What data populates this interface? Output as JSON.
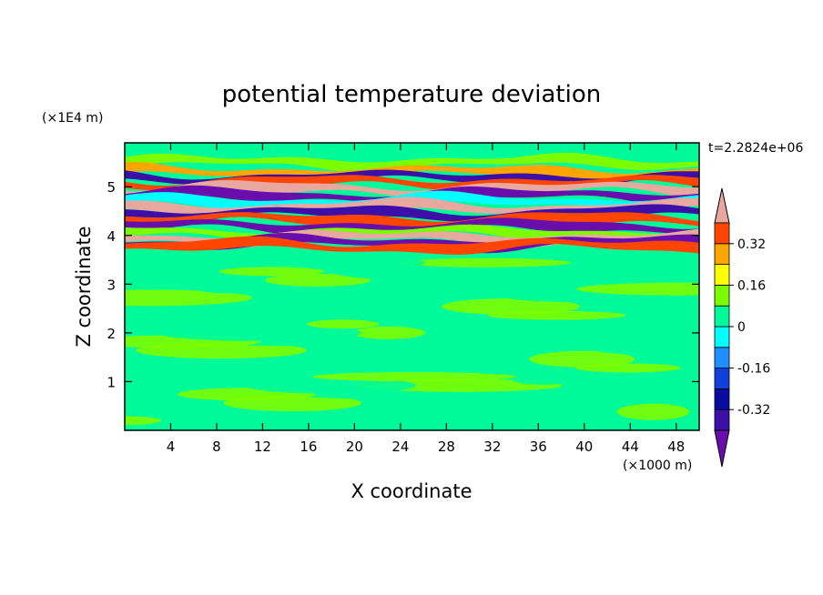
{
  "chart_data": {
    "type": "heatmap",
    "title": "potential temperature deviation",
    "xlabel": "X coordinate",
    "ylabel": "Z coordinate",
    "x_unit": "(×1000 m)",
    "y_unit": "(×1E4 m)",
    "time_label": "t=2.2824e+06",
    "xlim": [
      0,
      50
    ],
    "ylim": [
      0,
      5.9
    ],
    "x_ticks": [
      4,
      8,
      12,
      16,
      20,
      24,
      28,
      32,
      36,
      40,
      44,
      48
    ],
    "y_ticks": [
      1,
      2,
      3,
      4,
      5
    ],
    "colorbar": {
      "levels": [
        -0.48,
        -0.4,
        -0.32,
        -0.24,
        -0.16,
        -0.08,
        0,
        0.08,
        0.16,
        0.24,
        0.32,
        0.4,
        0.48
      ],
      "colors": [
        "#6a0dad",
        "#3b0fa8",
        "#0a0aa0",
        "#1040d8",
        "#1e90ff",
        "#00ffff",
        "#00fa9a",
        "#7cfc00",
        "#ffff00",
        "#ffa500",
        "#ff4500",
        "#ff2a2a",
        "#e8a8a0"
      ],
      "tick_labels": [
        "0.32",
        "0.16",
        "0",
        "-0.16",
        "-0.32"
      ],
      "tick_values": [
        0.32,
        0.16,
        0,
        -0.16,
        -0.32
      ],
      "extend": "both"
    },
    "field": {
      "background": "#00fa9a",
      "bands": [
        {
          "z": 5.5,
          "color": "#7cfc00"
        },
        {
          "z": 5.3,
          "color": "#ffa500"
        },
        {
          "z": 5.18,
          "color": "#3b0fa8"
        },
        {
          "z": 5.08,
          "color": "#ff4500"
        },
        {
          "z": 4.95,
          "color": "#e8a8a0"
        },
        {
          "z": 4.82,
          "color": "#6a0dad"
        },
        {
          "z": 4.7,
          "color": "#00ffff"
        },
        {
          "z": 4.58,
          "color": "#e8a8a0"
        },
        {
          "z": 4.45,
          "color": "#3b0fa8"
        },
        {
          "z": 4.32,
          "color": "#ff4500"
        },
        {
          "z": 4.18,
          "color": "#6a0dad"
        },
        {
          "z": 4.05,
          "color": "#7cfc00"
        },
        {
          "z": 3.95,
          "color": "#e8a8a0"
        },
        {
          "z": 3.85,
          "color": "#6a0dad"
        },
        {
          "z": 3.78,
          "color": "#ff4500"
        }
      ]
    }
  }
}
